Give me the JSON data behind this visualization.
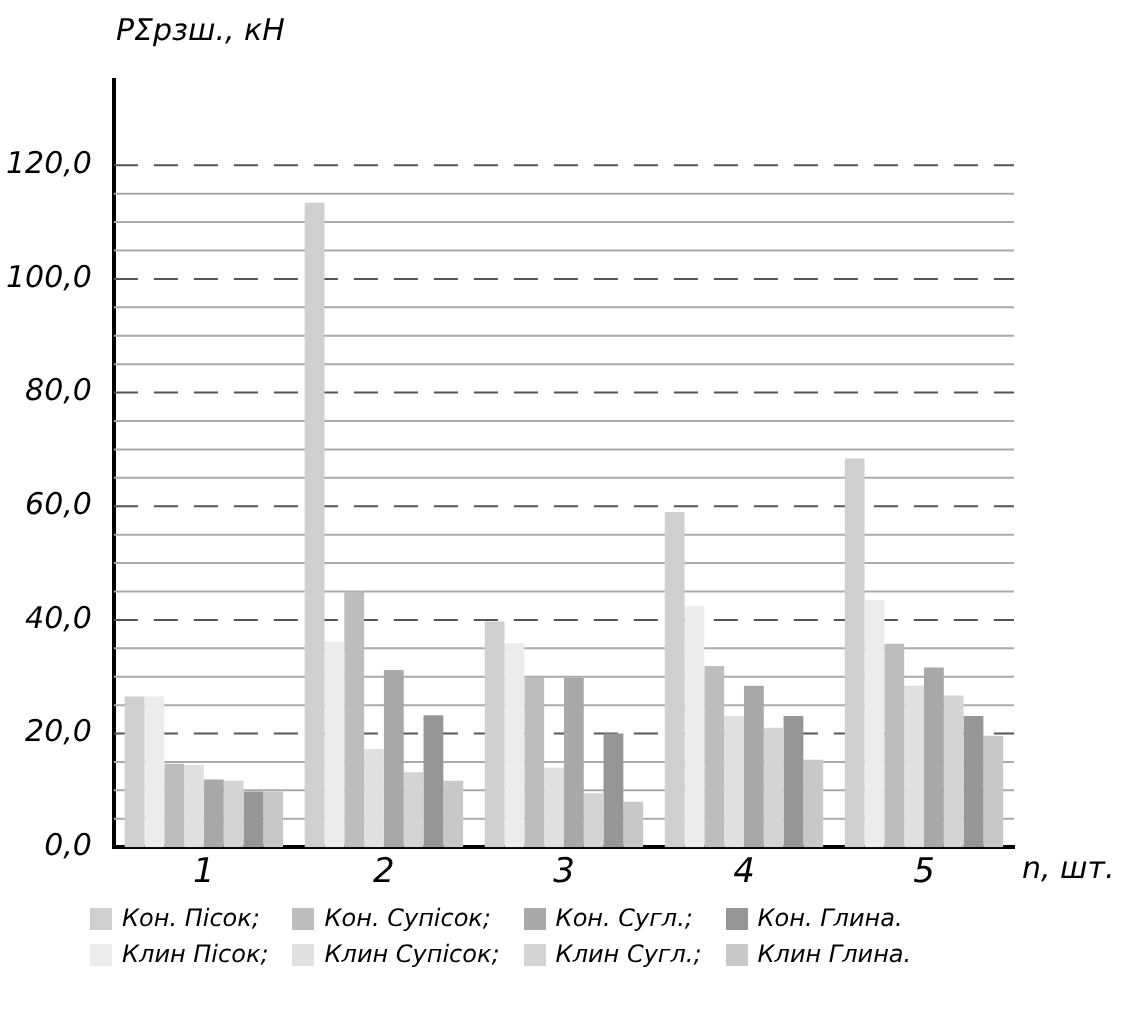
{
  "chart_data": {
    "type": "bar",
    "ylabel": "PΣрзш., кН",
    "xlabel": "n, шт.",
    "categories": [
      "1",
      "2",
      "3",
      "4",
      "5"
    ],
    "ylim": [
      0,
      135
    ],
    "yticks": [
      {
        "value": 0,
        "label": "0,0"
      },
      {
        "value": 5,
        "label": null
      },
      {
        "value": 10,
        "label": null
      },
      {
        "value": 15,
        "label": null
      },
      {
        "value": 20,
        "label": "20,0"
      },
      {
        "value": 25,
        "label": null
      },
      {
        "value": 30,
        "label": null
      },
      {
        "value": 35,
        "label": null
      },
      {
        "value": 40,
        "label": "40,0"
      },
      {
        "value": 45,
        "label": null
      },
      {
        "value": 50,
        "label": null
      },
      {
        "value": 55,
        "label": null
      },
      {
        "value": 60,
        "label": "60,0"
      },
      {
        "value": 65,
        "label": null
      },
      {
        "value": 70,
        "label": null
      },
      {
        "value": 75,
        "label": null
      },
      {
        "value": 80,
        "label": "80,0"
      },
      {
        "value": 85,
        "label": null
      },
      {
        "value": 90,
        "label": null
      },
      {
        "value": 95,
        "label": null
      },
      {
        "value": 100,
        "label": "100,0"
      },
      {
        "value": 105,
        "label": null
      },
      {
        "value": 110,
        "label": null
      },
      {
        "value": 115,
        "label": null
      },
      {
        "value": 120,
        "label": "120,0"
      }
    ],
    "grid": "y",
    "legend": "bottom",
    "series": [
      {
        "name": "Кон. Пісок;",
        "color": "#cfcfcf",
        "values": [
          26.5,
          113.4,
          39.7,
          59,
          68.4
        ]
      },
      {
        "name": "Клин Пісок;",
        "color": "#ececec",
        "values": [
          26.5,
          36.2,
          35.9,
          42.4,
          43.5
        ]
      },
      {
        "name": "Кон. Супісок;",
        "color": "#bdbdbd",
        "values": [
          14.7,
          45,
          29.8,
          31.9,
          35.8
        ]
      },
      {
        "name": "Клин Супісок;",
        "color": "#e0e0e0",
        "values": [
          14.5,
          17.3,
          14,
          23.1,
          28.4
        ]
      },
      {
        "name": "Кон. Сугл.;",
        "color": "#a8a8a8",
        "values": [
          11.9,
          31.2,
          29.8,
          28.4,
          31.6
        ]
      },
      {
        "name": "Клин Сугл.;",
        "color": "#d4d4d4",
        "values": [
          11.7,
          13.2,
          9.5,
          21,
          26.7
        ]
      },
      {
        "name": "Кон. Глина.",
        "color": "#969696",
        "values": [
          9.8,
          23.2,
          20,
          23.1,
          23.1
        ]
      },
      {
        "name": "Клин Глина.",
        "color": "#c8c8c8",
        "values": [
          9.8,
          11.7,
          8,
          15.4,
          19.6
        ]
      }
    ]
  }
}
